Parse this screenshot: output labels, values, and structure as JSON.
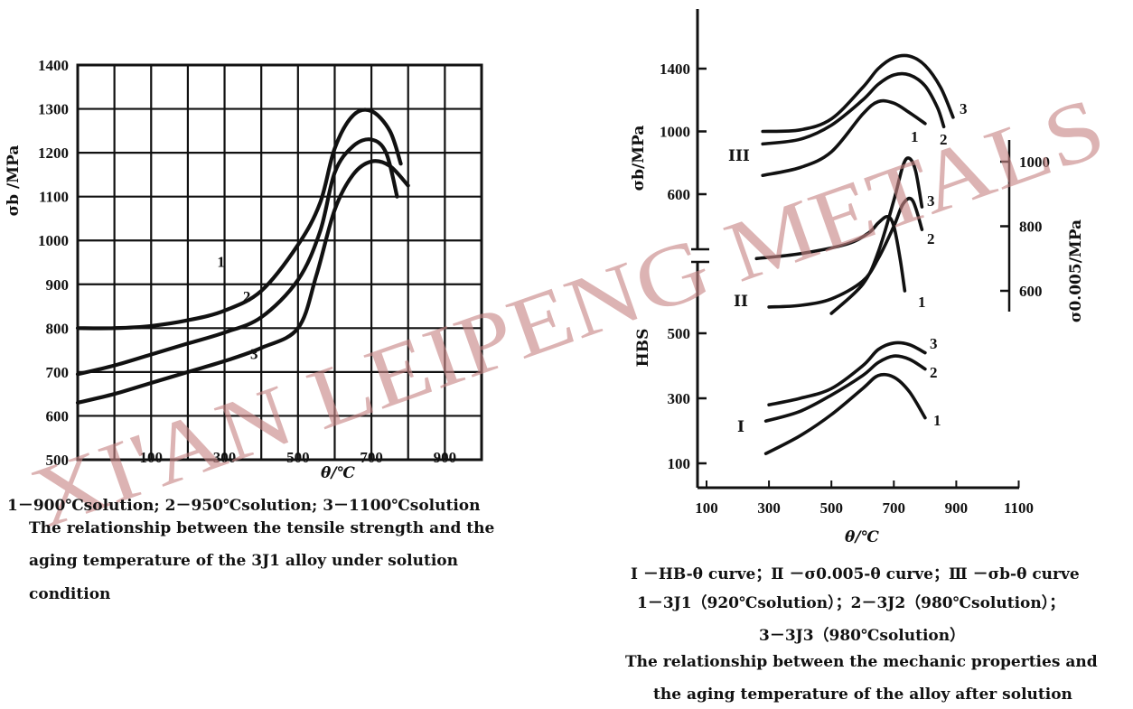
{
  "left_chart": {
    "xlabel": "θ/℃",
    "ylabel": "σb /MPa",
    "caption_legend": "1－900℃solution;  2－950℃solution;  3－1100℃solution",
    "caption_lines": [
      "The relationship between the tensile strength and the",
      "aging temperature of the 3J1 alloy under solution",
      "condition"
    ]
  },
  "right_chart": {
    "xlabel": "θ/℃",
    "ylabel_top": "σb/MPa",
    "ylabel_bottom": "HBS",
    "ylabel_right": "σ0.005/MPa",
    "group_labels": [
      "III",
      "II",
      "I"
    ],
    "caption_legend_1": "Ⅰ －HB-θ curve；Ⅱ －σ0.005-θ curve；Ⅲ －σb-θ curve",
    "caption_legend_2": "1－3J1（920℃solution）；2－3J2（980℃solution）；",
    "caption_legend_3": "3－3J3（980℃solution）",
    "caption_lines": [
      "The relationship between the mechanic properties and",
      "the aging temperature of the alloy after solution"
    ]
  },
  "watermark": "XI'AN LEIPENG METALS",
  "chart_data": [
    {
      "type": "line",
      "xlabel": "θ/℃",
      "ylabel": "σb /MPa",
      "xlim": [
        -100,
        1000
      ],
      "ylim": [
        500,
        1400
      ],
      "x_ticks": [
        100,
        300,
        500,
        700,
        900
      ],
      "y_ticks": [
        500,
        600,
        700,
        800,
        900,
        1000,
        1100,
        1200,
        1300,
        1400
      ],
      "grid": true,
      "series": [
        {
          "name": "1",
          "x": [
            -100,
            0,
            100,
            200,
            300,
            400,
            500,
            560,
            600,
            650,
            700,
            750,
            780
          ],
          "y": [
            800,
            800,
            805,
            818,
            840,
            885,
            990,
            1085,
            1210,
            1285,
            1295,
            1250,
            1175
          ]
        },
        {
          "name": "2",
          "x": [
            -100,
            0,
            100,
            200,
            300,
            400,
            500,
            560,
            600,
            650,
            700,
            740,
            770
          ],
          "y": [
            695,
            715,
            740,
            765,
            790,
            825,
            910,
            1020,
            1155,
            1215,
            1230,
            1200,
            1100
          ]
        },
        {
          "name": "3",
          "x": [
            -100,
            0,
            100,
            200,
            300,
            400,
            500,
            550,
            600,
            650,
            700,
            750,
            800
          ],
          "y": [
            630,
            650,
            675,
            700,
            725,
            755,
            800,
            920,
            1070,
            1150,
            1180,
            1170,
            1125
          ]
        }
      ],
      "series_labels": [
        "1",
        "2",
        "3"
      ]
    },
    {
      "type": "line",
      "xlabel": "θ/℃",
      "x_ticks": [
        100,
        300,
        500,
        700,
        900,
        1100
      ],
      "xlim": [
        100,
        1100
      ],
      "left_axis_ticks": [
        100,
        300,
        500,
        600,
        1000,
        1400
      ],
      "right_axis_ticks": [
        600,
        800,
        1000
      ],
      "grid": false,
      "groups": [
        {
          "name": "III",
          "quantity": "σb/MPa",
          "series": [
            {
              "name": "1",
              "x": [
                280,
                400,
                500,
                600,
                650,
                700,
                750,
                800
              ],
              "y": [
                720,
                770,
                870,
                1110,
                1190,
                1180,
                1120,
                1050
              ]
            },
            {
              "name": "2",
              "x": [
                280,
                400,
                500,
                600,
                650,
                700,
                750,
                800,
                840,
                860
              ],
              "y": [
                920,
                950,
                1040,
                1200,
                1300,
                1360,
                1360,
                1290,
                1150,
                1030
              ]
            },
            {
              "name": "3",
              "x": [
                280,
                400,
                500,
                600,
                650,
                700,
                750,
                800,
                850,
                890
              ],
              "y": [
                1000,
                1010,
                1080,
                1280,
                1400,
                1470,
                1480,
                1420,
                1280,
                1090
              ]
            }
          ]
        },
        {
          "name": "II",
          "quantity": "σ0.005/MPa",
          "series": [
            {
              "name": "1",
              "x": [
                260,
                400,
                550,
                620,
                650,
                680,
                700,
                720,
                735
              ],
              "y": [
                700,
                715,
                745,
                780,
                810,
                830,
                800,
                700,
                600
              ]
            },
            {
              "name": "2",
              "x": [
                300,
                400,
                500,
                600,
                650,
                700,
                730,
                760,
                790
              ],
              "y": [
                550,
                555,
                575,
                630,
                700,
                800,
                870,
                880,
                790
              ]
            },
            {
              "name": "3",
              "x": [
                500,
                600,
                650,
                700,
                730,
                750,
                770,
                790
              ],
              "y": [
                530,
                620,
                720,
                880,
                990,
                1010,
                970,
                860
              ]
            }
          ]
        },
        {
          "name": "I",
          "quantity": "HBS",
          "series": [
            {
              "name": "1",
              "x": [
                290,
                400,
                500,
                600,
                650,
                700,
                750,
                800
              ],
              "y": [
                130,
                185,
                250,
                330,
                370,
                365,
                320,
                240
              ]
            },
            {
              "name": "2",
              "x": [
                290,
                400,
                500,
                600,
                650,
                700,
                750,
                800
              ],
              "y": [
                230,
                260,
                310,
                370,
                410,
                430,
                420,
                390
              ]
            },
            {
              "name": "3",
              "x": [
                300,
                400,
                500,
                600,
                650,
                700,
                750,
                800
              ],
              "y": [
                280,
                300,
                330,
                400,
                450,
                470,
                465,
                440
              ]
            }
          ]
        }
      ],
      "series_labels": [
        "1",
        "2",
        "3"
      ]
    }
  ]
}
